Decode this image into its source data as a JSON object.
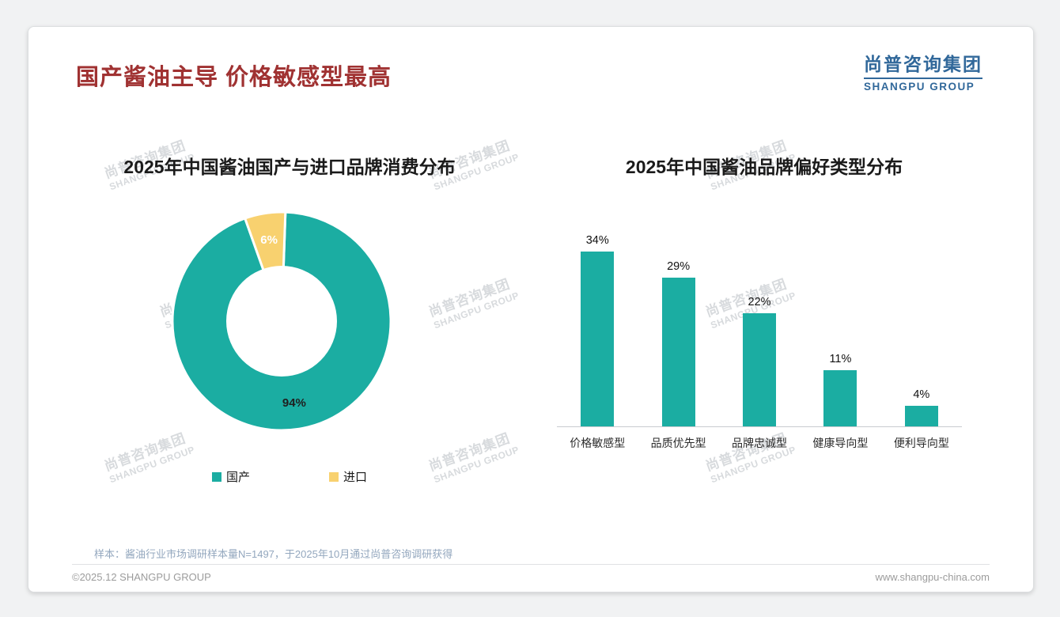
{
  "page": {
    "title": "国产酱油主导 价格敏感型最高",
    "logo": {
      "cn": "尚普咨询集团",
      "en": "SHANGPU GROUP"
    },
    "note": "样本：酱油行业市场调研样本量N=1497，于2025年10月通过尚普咨询调研获得",
    "footer": {
      "left": "©2025.12 SHANGPU GROUP",
      "right": "www.shangpu-china.com"
    },
    "watermark": {
      "line1": "尚普咨询集团",
      "line2": "SHANGPU GROUP"
    },
    "colors": {
      "accent_red": "#a03232",
      "brand_blue": "#31689a",
      "teal": "#1badа2"
    }
  },
  "chart_data": [
    {
      "type": "pie",
      "donut": true,
      "title": "2025年中国酱油国产与进口品牌消费分布",
      "labels": [
        "国产",
        "进口"
      ],
      "values": [
        94,
        6
      ],
      "unit": "%",
      "colors": [
        "#1bada2",
        "#f8d16f"
      ],
      "label_colors": [
        "#1f1f1f",
        "#ffffff"
      ],
      "legend_position": "bottom"
    },
    {
      "type": "bar",
      "title": "2025年中国酱油品牌偏好类型分布",
      "categories": [
        "价格敏感型",
        "品质优先型",
        "品牌忠诚型",
        "健康导向型",
        "便利导向型"
      ],
      "values": [
        34,
        29,
        22,
        11,
        4
      ],
      "unit": "%",
      "bar_color": "#1bada2",
      "ylim": [
        0,
        40
      ],
      "grid": false,
      "data_labels": true
    }
  ]
}
